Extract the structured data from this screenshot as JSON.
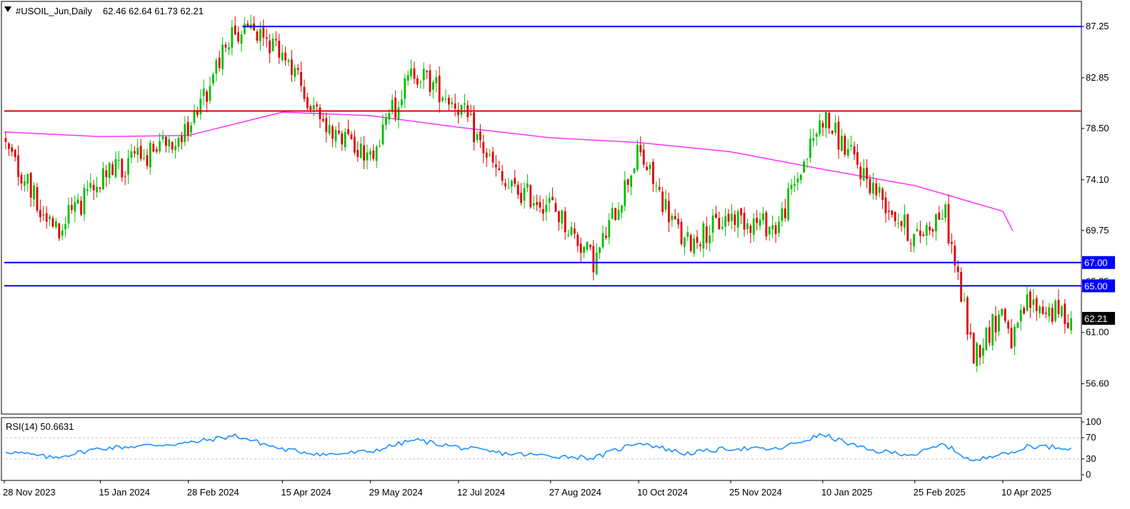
{
  "header": {
    "symbol": "#USOIL_Jun,Daily",
    "ohlc": "62.46 62.64 61.73 62.21",
    "collapse_icon": "triangle-down-icon"
  },
  "colors": {
    "background": "#ffffff",
    "frame": "#000000",
    "bull": "#00c000",
    "bear": "#e00000",
    "moving_average": "#ff33ff",
    "resistance_red": "#e00000",
    "level_blue": "#0000ff",
    "rsi_line": "#1e90ff",
    "rsi_levels": "#c0c0c0",
    "price_tag_bg": "#000000",
    "level_tag_bg": "#0000ff"
  },
  "chart_data": [
    {
      "type": "candlestick",
      "title": "#USOIL_Jun,Daily",
      "ylim": [
        54.0,
        89.4
      ],
      "y_ticks": [
        "87.25",
        "82.85",
        "78.50",
        "74.10",
        "69.75",
        "65.35",
        "61.00",
        "56.60"
      ],
      "x_ticks": [
        "28 Nov 2023",
        "15 Jan 2024",
        "28 Feb 2024",
        "15 Apr 2024",
        "29 May 2024",
        "12 Jul 2024",
        "27 Aug 2024",
        "10 Oct 2024",
        "25 Nov 2024",
        "10 Jan 2025",
        "25 Feb 2025",
        "10 Apr 2025"
      ],
      "last_price": "62.21",
      "horizontal_lines": [
        {
          "value": 87.25,
          "color": "#0000ff",
          "start": "26 Mar 2024"
        },
        {
          "value": 80.0,
          "color": "#e00000",
          "start": "28 Nov 2023"
        },
        {
          "value": 67.0,
          "color": "#0000ff",
          "label": "67.00",
          "start": "28 Nov 2023"
        },
        {
          "value": 65.0,
          "color": "#0000ff",
          "label": "65.00",
          "start": "28 Nov 2023"
        }
      ],
      "moving_average": {
        "x": [
          "28 Nov 2023",
          "15 Jan 2024",
          "28 Feb 2024",
          "15 Apr 2024",
          "29 May 2024",
          "12 Jul 2024",
          "27 Aug 2024",
          "10 Oct 2024",
          "25 Nov 2024",
          "10 Jan 2025",
          "25 Feb 2025",
          "10 Apr 2025",
          "Apr 2025"
        ],
        "y": [
          78.2,
          77.8,
          77.9,
          79.9,
          79.6,
          78.6,
          77.7,
          77.3,
          76.5,
          75.0,
          73.6,
          71.4,
          69.7
        ]
      },
      "price_path": {
        "x": [
          "28 Nov 2023",
          "Dec 2023",
          "15 Jan 2024",
          "28 Feb 2024",
          "Mar 2024",
          "15 Apr 2024",
          "Apr 2024",
          "29 May 2024",
          "Jun 2024",
          "12 Jul 2024",
          "Aug 2024",
          "27 Aug 2024",
          "Sep 2024",
          "10 Oct 2024",
          "Oct 2024",
          "25 Nov 2024",
          "Dec 2024",
          "10 Jan 2025",
          "Jan 2025",
          "25 Feb 2025",
          "Mar 2025",
          "Apr 2025",
          "10 Apr 2025",
          "Apr 2025",
          "Apr 2025",
          "May 2025"
        ],
        "y": [
          77.5,
          69.5,
          74.0,
          78.5,
          87.0,
          85.0,
          78.0,
          76.5,
          83.5,
          80.5,
          73.5,
          72.0,
          67.0,
          76.5,
          68.5,
          71.0,
          70.0,
          79.5,
          74.0,
          69.0,
          71.5,
          59.0,
          63.0,
          60.0,
          63.5,
          62.21
        ]
      }
    },
    {
      "type": "line",
      "title": "RSI(14) 50.6631",
      "ylim": [
        0,
        100
      ],
      "y_ticks": [
        "100",
        "70",
        "30",
        "0"
      ],
      "levels": [
        70,
        30
      ],
      "path": {
        "x": [
          "28 Nov 2023",
          "Dec 2023",
          "15 Jan 2024",
          "28 Feb 2024",
          "Mar 2024",
          "15 Apr 2024",
          "Apr 2024",
          "29 May 2024",
          "Jun 2024",
          "12 Jul 2024",
          "Aug 2024",
          "27 Aug 2024",
          "Sep 2024",
          "10 Oct 2024",
          "Oct 2024",
          "25 Nov 2024",
          "Dec 2024",
          "10 Jan 2025",
          "Jan 2025",
          "25 Feb 2025",
          "Mar 2025",
          "Apr 2025",
          "10 Apr 2025",
          "Apr 2025",
          "Apr 2025",
          "May 2025"
        ],
        "y": [
          45,
          32,
          50,
          60,
          74,
          48,
          38,
          44,
          66,
          52,
          40,
          36,
          32,
          62,
          40,
          50,
          48,
          76,
          46,
          38,
          58,
          24,
          44,
          38,
          55,
          50.66
        ]
      }
    }
  ]
}
